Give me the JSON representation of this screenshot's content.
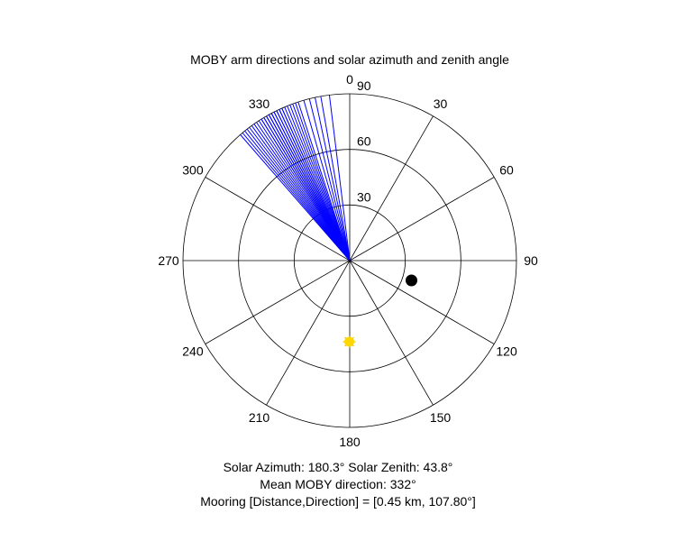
{
  "chart_data": {
    "type": "polar",
    "title": "MOBY arm directions and solar azimuth and zenith angle",
    "theta_direction": "clockwise",
    "theta_zero": "top",
    "theta_ticks": [
      0,
      30,
      60,
      90,
      120,
      150,
      180,
      210,
      240,
      270,
      300,
      330
    ],
    "theta_tick_labels": [
      "0",
      "30",
      "60",
      "90",
      "120",
      "150",
      "180",
      "210",
      "240",
      "270",
      "300",
      "330"
    ],
    "r_lim": [
      0,
      90
    ],
    "r_ticks": [
      30,
      60,
      90
    ],
    "r_tick_labels": [
      "30",
      "60",
      "90"
    ],
    "grid": true,
    "arm_color": "#0000ff",
    "arm_directions": [
      319,
      320,
      321,
      322,
      323,
      324,
      325,
      326,
      327,
      328,
      328,
      329,
      329,
      330,
      330,
      331,
      331,
      332,
      332,
      332,
      333,
      333,
      334,
      334,
      335,
      335,
      336,
      336,
      337,
      338,
      339,
      340,
      341,
      342,
      344,
      346,
      348,
      350,
      353
    ],
    "sun_marker": {
      "azimuth": 180.3,
      "zenith": 43.8,
      "color": "#ffd700",
      "edge_color": "#e6c200"
    },
    "mooring_marker": {
      "direction": 107.8,
      "radius": 35,
      "color": "#000000"
    }
  },
  "captions": {
    "line1": "Solar Azimuth: 180.3°    Solar Zenith: 43.8°",
    "line2": "Mean MOBY direction: 332°",
    "line3": "Mooring [Distance,Direction] = [0.45 km, 107.80°]"
  }
}
